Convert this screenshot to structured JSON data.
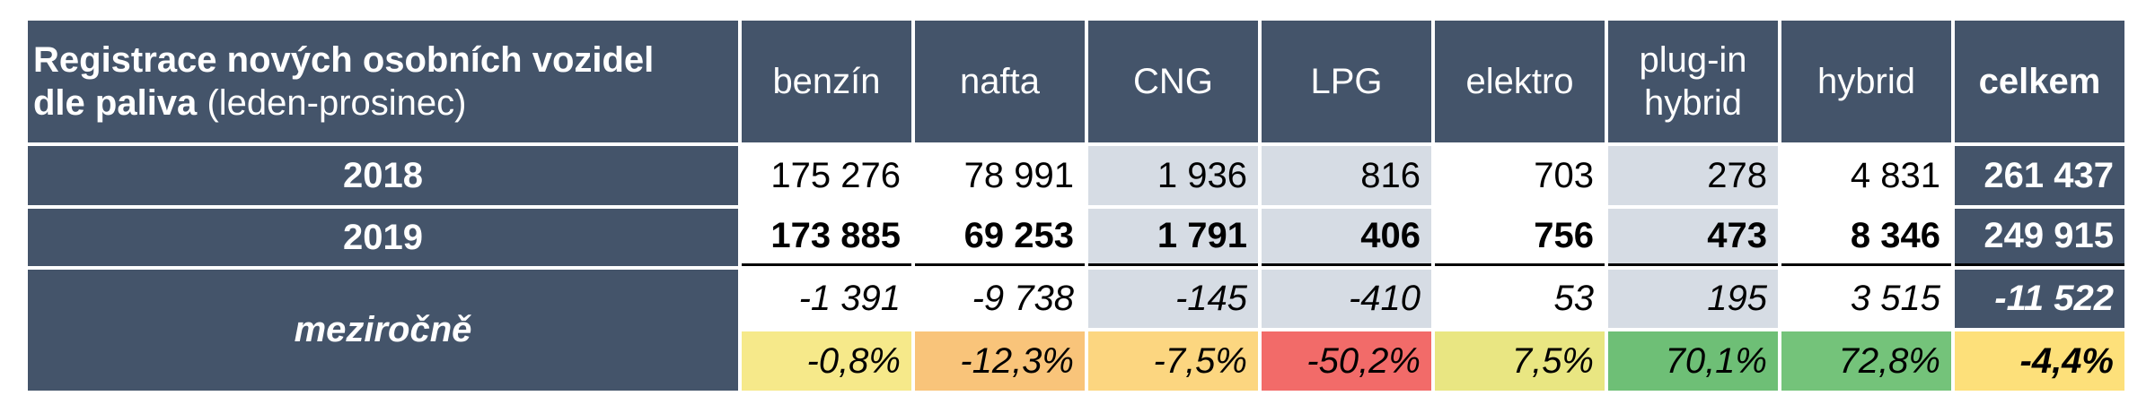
{
  "table": {
    "title": {
      "bold_line": "Registrace nových osobních vozidel",
      "bold_part": "dle paliva",
      "normal_part": "(leden-prosinec)"
    },
    "columns": [
      "benzín",
      "nafta",
      "CNG",
      "LPG",
      "elektro",
      "plug-in hybrid",
      "hybrid",
      "celkem"
    ],
    "rows": [
      {
        "label": "2018",
        "values": [
          "175 276",
          "78 991",
          "1 936",
          "816",
          "703",
          "278",
          "4 831",
          "261 437"
        ]
      },
      {
        "label": "2019",
        "values": [
          "173 885",
          "69 253",
          "1 791",
          "406",
          "756",
          "473",
          "8 346",
          "249 915"
        ]
      }
    ],
    "change": {
      "label": "meziročně",
      "absolute": [
        "-1 391",
        "-9 738",
        "-145",
        "-410",
        "53",
        "195",
        "3 515",
        "-11 522"
      ],
      "percent": [
        "-0,8%",
        "-12,3%",
        "-7,5%",
        "-50,2%",
        "7,5%",
        "70,1%",
        "72,8%",
        "-4,4%"
      ],
      "percent_colors": [
        "#f6e98a",
        "#f9c47a",
        "#fcd680",
        "#f26b69",
        "#e9e682",
        "#6ebf76",
        "#74c37a",
        "#fde07a"
      ]
    }
  }
}
